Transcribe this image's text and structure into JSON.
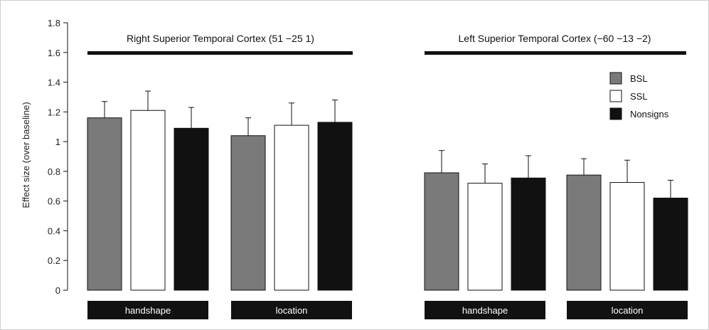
{
  "chart_data": {
    "type": "bar",
    "ylabel": "Effect size (over baseline)",
    "ylim": [
      0,
      1.8
    ],
    "yticks": [
      "0",
      "0.2",
      "0.4",
      "0.6",
      "0.8",
      "1",
      "1.2",
      "1.4",
      "1.6",
      "1.8"
    ],
    "grid": false,
    "legend_position": "top-right",
    "series": [
      {
        "name": "BSL",
        "color": "#7a7a7a"
      },
      {
        "name": "SSL",
        "color": "#ffffff"
      },
      {
        "name": "Nonsigns",
        "color": "#111111"
      }
    ],
    "panels": [
      {
        "title": "Right Superior Temporal Cortex (51 −25 1)",
        "groups": [
          {
            "label": "handshape",
            "values": [
              1.16,
              1.21,
              1.09
            ],
            "errors": [
              0.11,
              0.13,
              0.14
            ]
          },
          {
            "label": "location",
            "values": [
              1.04,
              1.11,
              1.13
            ],
            "errors": [
              0.12,
              0.15,
              0.15
            ]
          }
        ]
      },
      {
        "title": "Left Superior Temporal Cortex (−60 −13 −2)",
        "groups": [
          {
            "label": "handshape",
            "values": [
              0.79,
              0.72,
              0.755
            ],
            "errors": [
              0.15,
              0.13,
              0.15
            ]
          },
          {
            "label": "location",
            "values": [
              0.775,
              0.725,
              0.62
            ],
            "errors": [
              0.11,
              0.15,
              0.12
            ]
          }
        ]
      }
    ]
  }
}
